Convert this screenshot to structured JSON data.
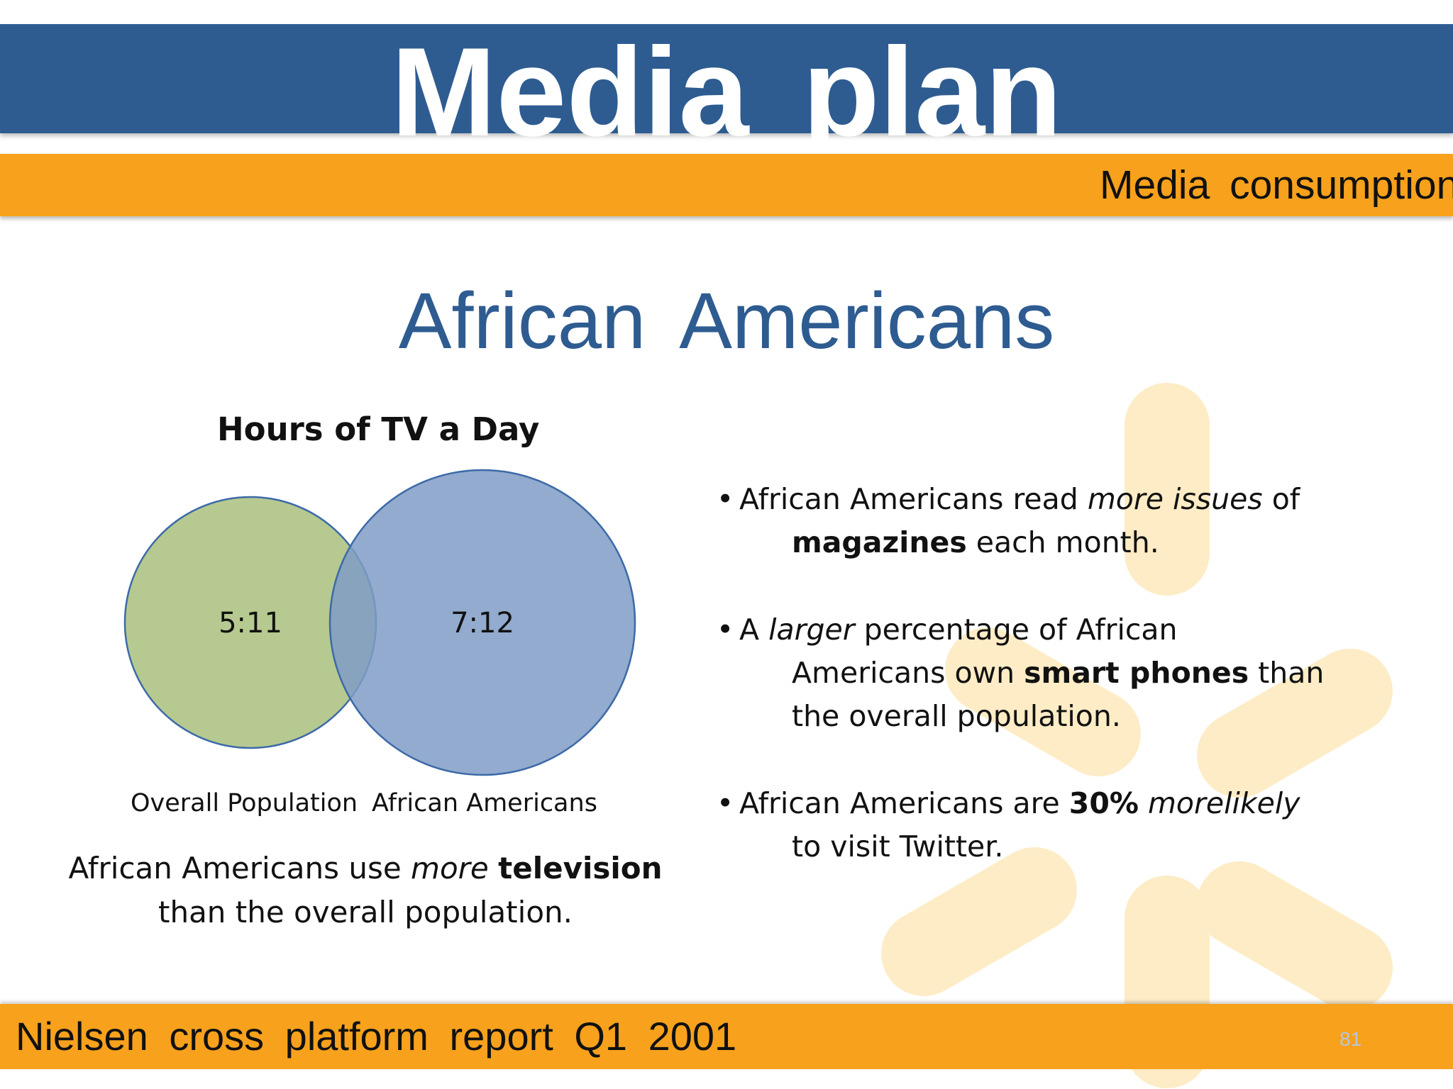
{
  "header": {
    "title": "Media  plan",
    "subtitle": "Media  consumption"
  },
  "heading": "African  Americans",
  "chart": {
    "title": "Hours of TV a Day"
  },
  "chart_data": {
    "type": "venn",
    "title": "Hours of TV a Day",
    "sets": [
      {
        "name": "Overall Population",
        "value": "5:11",
        "color": "#a9bf7d"
      },
      {
        "name": "African Americans",
        "value": "7:12",
        "color": "#7f9cc5"
      }
    ]
  },
  "caption": {
    "part1": "African Americans use ",
    "italic": "more",
    "bold": "television",
    "part2": "than the overall population."
  },
  "bullets": [
    {
      "a": "African Americans read ",
      "italic": "more issues",
      "b": " of",
      "bold": "magazines",
      "c": " each month."
    },
    {
      "a": "A ",
      "italic": "larger",
      "b": " percentage of African",
      "c": "Americans own ",
      "bold": "smart phones",
      "d": " than",
      "e": "the overall population."
    },
    {
      "a": "African Americans are ",
      "bold": "30%",
      "italic": "morelikely",
      "c": "to visit Twitter."
    }
  ],
  "footer": {
    "source": "Nielsen  cross  platform  report  Q1  2001",
    "page_number": "81"
  },
  "colors": {
    "title_bar": "#2e5c91",
    "accent_bar": "#f7a11c",
    "heading": "#2e5c91",
    "watermark": "#fde6b0"
  }
}
